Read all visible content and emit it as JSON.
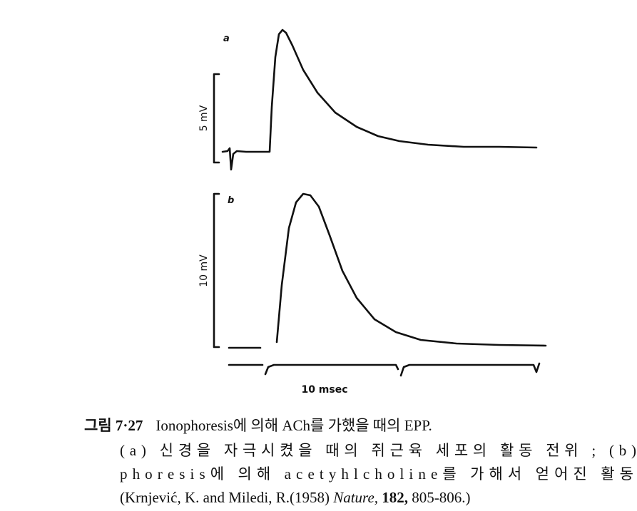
{
  "figure": {
    "panels": [
      {
        "label": "a",
        "scale": "5 mV"
      },
      {
        "label": "b",
        "scale": "10 mV"
      }
    ],
    "time_scale": "10 msec"
  },
  "caption": {
    "number": "그림 7·27",
    "title": "Ionophoresis에 의해 ACh를 가했을 때의 EPP.",
    "lines": [
      "(a) 신경을 자극시켰을 때의 쥐근육 세포의 활동 전위 ; (b)",
      "phoresis에 의해 acetyhlcholine를 가해서 얻어진 활동"
    ],
    "citation": {
      "authors": "(Krnjević, K. and Miledi, R.(1958)",
      "journal": "Nature,",
      "volume": "182,",
      "pages": "805-806.)"
    }
  }
}
